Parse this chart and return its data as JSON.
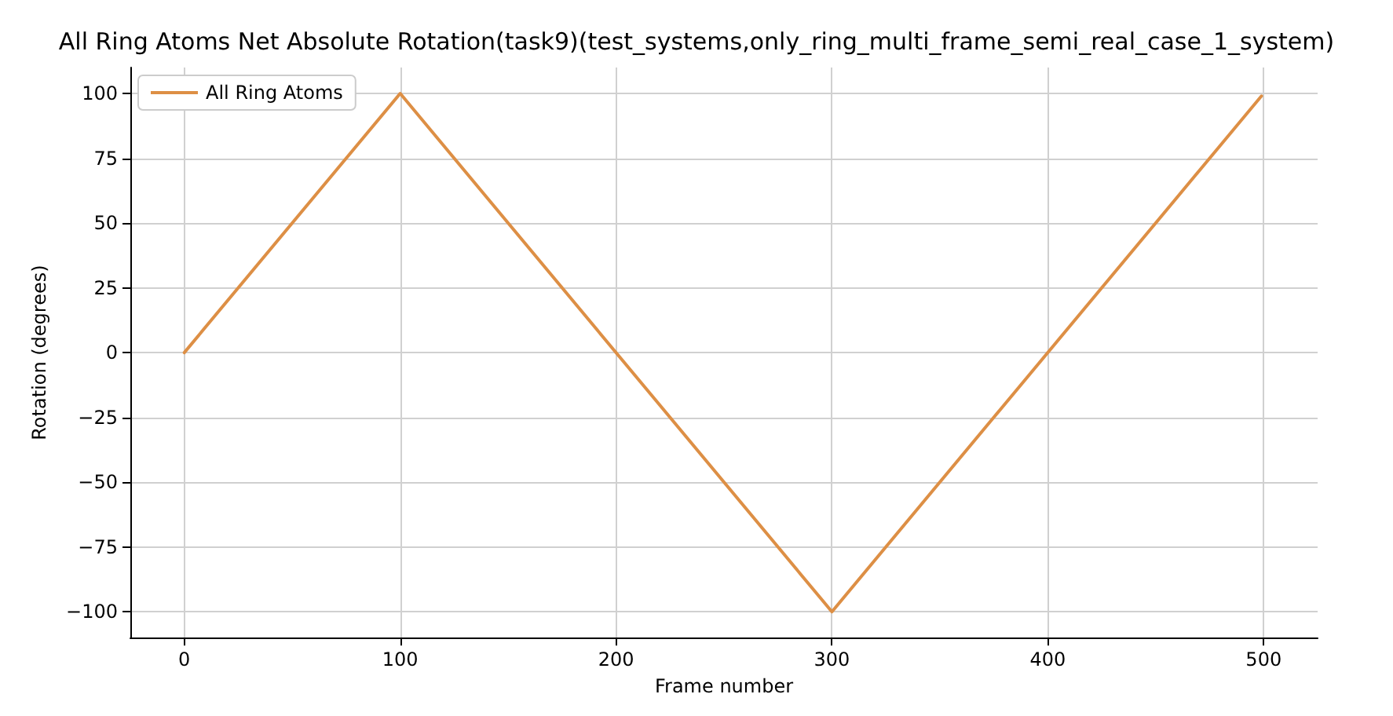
{
  "chart_data": {
    "type": "line",
    "title": "All Ring Atoms Net Absolute Rotation(task9)(test_systems,only_ring_multi_frame_semi_real_case_1_system)",
    "xlabel": "Frame number",
    "ylabel": "Rotation (degrees)",
    "x": [
      0,
      100,
      300,
      499
    ],
    "series": [
      {
        "name": "All Ring Atoms",
        "color": "#dd8f45",
        "values": [
          0,
          100,
          -100,
          99
        ]
      }
    ],
    "xlim": [
      -25,
      525
    ],
    "xticks": [
      0,
      100,
      200,
      300,
      400,
      500
    ],
    "ylim": [
      -110,
      110
    ],
    "yticks": [
      -100,
      -75,
      -50,
      -25,
      0,
      25,
      50,
      75,
      100
    ],
    "grid": true,
    "legend": "top left",
    "marker": "none",
    "line_style": "solid"
  }
}
